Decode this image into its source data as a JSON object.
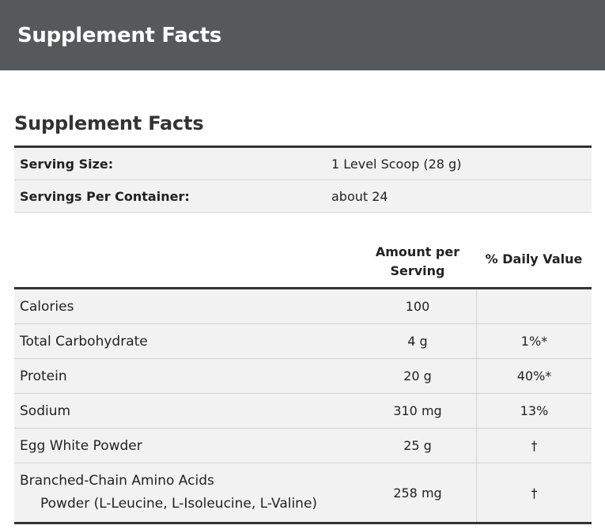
{
  "header": {
    "title": "Supplement Facts"
  },
  "section": {
    "title": "Supplement Facts"
  },
  "serving": [
    {
      "label": "Serving Size:",
      "value": "1 Level Scoop (28 g)"
    },
    {
      "label": "Servings Per Container:",
      "value": "about 24"
    }
  ],
  "nutrition": {
    "col_amount_line1": "Amount per",
    "col_amount_line2": "Serving",
    "col_dv": "% Daily Value",
    "rows": [
      {
        "name": "Calories",
        "amount": "100",
        "dv": ""
      },
      {
        "name": "Total Carbohydrate",
        "amount": "4 g",
        "dv": "1%*"
      },
      {
        "name": "Protein",
        "amount": "20 g",
        "dv": "40%*"
      },
      {
        "name": "Sodium",
        "amount": "310 mg",
        "dv": "13%"
      },
      {
        "name": "Egg White Powder",
        "amount": "25 g",
        "dv": "†"
      },
      {
        "name": "Branched-Chain Amino Acids",
        "name_line2": "Powder (L-Leucine, L-Isoleucine, L-Valine)",
        "amount": "258 mg",
        "dv": "†"
      }
    ]
  }
}
